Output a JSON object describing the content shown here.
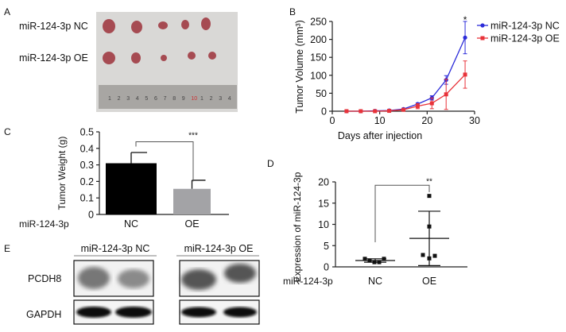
{
  "panels": {
    "a": {
      "label": "A",
      "rows": [
        "miR-124-3p NC",
        "miR-124-3p OE"
      ],
      "ruler_numbers": [
        "1",
        "2",
        "3",
        "4",
        "5",
        "6",
        "7",
        "8",
        "9",
        "10",
        "1",
        "2",
        "3",
        "4"
      ]
    },
    "b": {
      "label": "B"
    },
    "c": {
      "label": "C",
      "group_label": "miR-124-3p"
    },
    "d": {
      "label": "D",
      "group_label": "miR-124-3p"
    },
    "e": {
      "label": "E",
      "groups": [
        "miR-124-3p NC",
        "miR-124-3p OE"
      ],
      "rows": [
        "PCDH8",
        "GAPDH"
      ]
    }
  },
  "chart_data": [
    {
      "panel": "B",
      "type": "line",
      "xlabel": "Days after injection",
      "ylabel": "Tumor Volume (mm³)",
      "xlim": [
        0,
        30
      ],
      "ylim": [
        0,
        250
      ],
      "xticks": [
        "0",
        "10",
        "20",
        "30"
      ],
      "yticks": [
        "0",
        "50",
        "100",
        "150",
        "200",
        "250"
      ],
      "legend": "top-right",
      "x": [
        3,
        6,
        9,
        12,
        15,
        18,
        21,
        24,
        28
      ],
      "series": [
        {
          "name": "miR-124-3p NC",
          "color": "#2b2bd9",
          "values": [
            0,
            0,
            1,
            2,
            6,
            20,
            37,
            87,
            205
          ],
          "errors": [
            1,
            1,
            1,
            2,
            2,
            3,
            6,
            12,
            45
          ]
        },
        {
          "name": "miR-124-3p OE",
          "color": "#e8333a",
          "values": [
            0,
            0,
            0,
            1,
            4,
            14,
            22,
            47,
            102
          ],
          "errors": [
            1,
            1,
            1,
            1,
            2,
            7,
            15,
            42,
            38
          ]
        }
      ],
      "annotations": [
        {
          "x": 28,
          "text": "*"
        }
      ]
    },
    {
      "panel": "C",
      "type": "bar",
      "ylabel": "Tumor Weight (g)",
      "ylim": [
        0,
        0.5
      ],
      "yticks": [
        "0",
        "0.1",
        "0.2",
        "0.3",
        "0.4",
        "0.5"
      ],
      "categories": [
        "NC",
        "OE"
      ],
      "values": [
        0.31,
        0.155
      ],
      "errors": [
        0.065,
        0.052
      ],
      "colors": [
        "#000000",
        "#a3a3a6"
      ],
      "significance": "***"
    },
    {
      "panel": "D",
      "type": "scatter",
      "ylabel": "Expression of miR-124-3p",
      "ylim": [
        0,
        20
      ],
      "yticks": [
        "0",
        "5",
        "10",
        "15",
        "20"
      ],
      "categories": [
        "NC",
        "OE"
      ],
      "points": [
        [
          1.9,
          1.5,
          1.1,
          1.1,
          1.9
        ],
        [
          16.7,
          9.5,
          2.8,
          2.0,
          2.6
        ]
      ],
      "means": [
        1.5,
        6.7
      ],
      "sd": [
        0.4,
        6.4
      ],
      "significance": "**"
    }
  ]
}
